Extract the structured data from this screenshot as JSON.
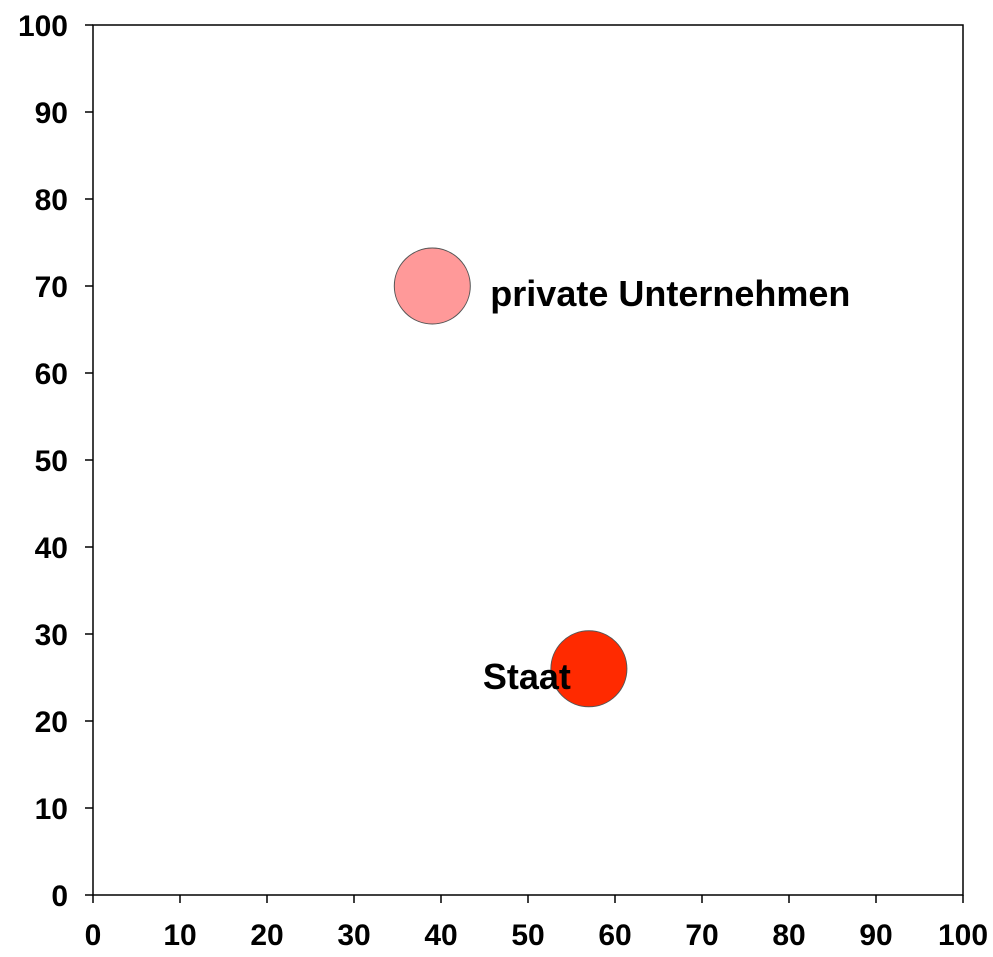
{
  "chart_data": {
    "type": "scatter",
    "title": "",
    "xlabel": "",
    "ylabel": "",
    "xlim": [
      0,
      100
    ],
    "ylim": [
      0,
      100
    ],
    "x_ticks": [
      "0",
      "10",
      "20",
      "30",
      "40",
      "50",
      "60",
      "70",
      "80",
      "90",
      "100"
    ],
    "y_ticks": [
      "0",
      "10",
      "20",
      "30",
      "40",
      "50",
      "60",
      "70",
      "80",
      "90",
      "100"
    ],
    "grid": false,
    "legend": "none",
    "points": [
      {
        "label": "private Unternehmen",
        "x": 39,
        "y": 70,
        "color": "#FF9999",
        "label_side": "right"
      },
      {
        "label": "Staat",
        "x": 57,
        "y": 26,
        "color": "#FF2A00",
        "label_side": "left"
      }
    ],
    "axis_color": "#000000",
    "marker_outline": "#555555"
  }
}
